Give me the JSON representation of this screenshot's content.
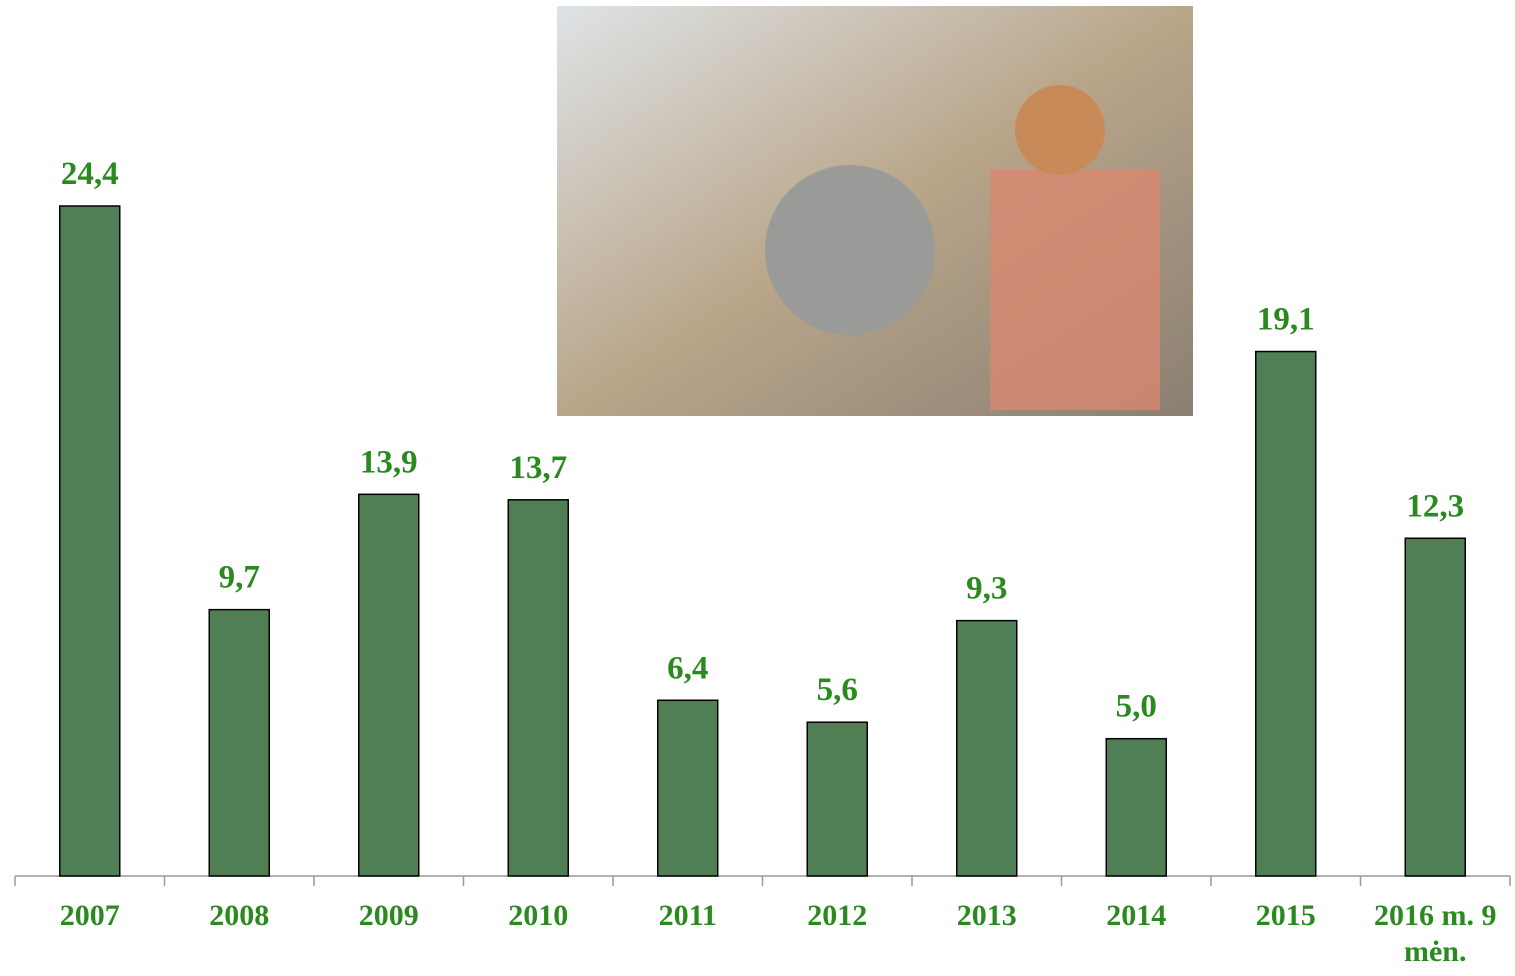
{
  "chart_data": {
    "type": "bar",
    "categories": [
      "2007",
      "2008",
      "2009",
      "2010",
      "2011",
      "2012",
      "2013",
      "2014",
      "2015",
      "2016 m. 9 mėn."
    ],
    "values": [
      24.4,
      9.7,
      13.9,
      13.7,
      6.4,
      5.6,
      9.3,
      5.0,
      19.1,
      12.3
    ],
    "value_labels": [
      "24,4",
      "9,7",
      "13,9",
      "13,7",
      "6,4",
      "5,6",
      "9,3",
      "5,0",
      "19,1",
      "12,3"
    ],
    "color": "#507e55",
    "label_color": "#2a8a1f"
  }
}
